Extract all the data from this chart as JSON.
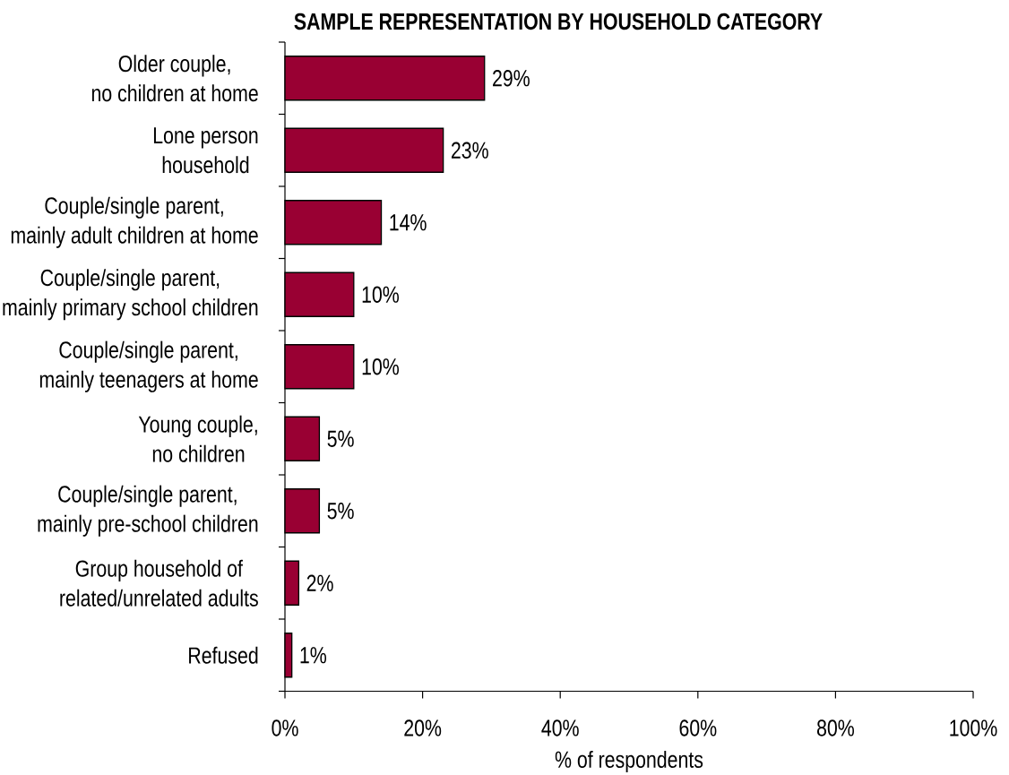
{
  "chart_data": {
    "type": "bar",
    "orientation": "horizontal",
    "title": "SAMPLE REPRESENTATION BY HOUSEHOLD CATEGORY",
    "xlabel": "% of respondents",
    "categories": [
      "Older couple,\nno children at home",
      "Lone person\nhousehold",
      "Couple/single parent,\nmainly adult children at home",
      "Couple/single parent,\nmainly primary school children",
      "Couple/single parent,\nmainly teenagers at home",
      "Young couple,\nno children",
      "Couple/single parent,\nmainly pre-school children",
      "Group household of\nrelated/unrelated adults",
      "Refused"
    ],
    "values": [
      29,
      23,
      14,
      10,
      10,
      5,
      5,
      2,
      1
    ],
    "color": "#990033",
    "value_labels": [
      "29%",
      "23%",
      "14%",
      "10%",
      "10%",
      "5%",
      "5%",
      "2%",
      "1%"
    ],
    "xlim": [
      0,
      100
    ],
    "xticks": [
      {
        "value": 0,
        "label": "0%"
      },
      {
        "value": 20,
        "label": "20%"
      },
      {
        "value": 40,
        "label": "40%"
      },
      {
        "value": 60,
        "label": "60%"
      },
      {
        "value": 80,
        "label": "80%"
      },
      {
        "value": 100,
        "label": "100%"
      }
    ]
  }
}
